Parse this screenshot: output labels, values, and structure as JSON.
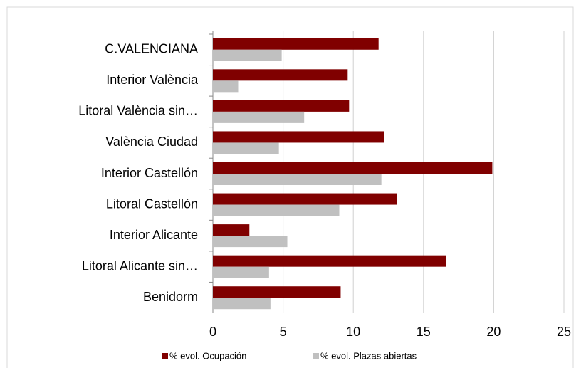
{
  "chart_data": {
    "type": "hbar",
    "categories": [
      "C.VALENCIANA",
      "Interior València",
      "Litoral València sin…",
      "València Ciudad",
      "Interior Castellón",
      "Litoral Castellón",
      "Interior Alicante",
      "Litoral Alicante sin…",
      "Benidorm"
    ],
    "series": [
      {
        "name": "% evol. Ocupación",
        "color": "#800000",
        "values": [
          11.8,
          9.6,
          9.7,
          12.2,
          19.9,
          13.1,
          2.6,
          16.6,
          9.1
        ]
      },
      {
        "name": "% evol. Plazas abiertas",
        "color": "#c0c0c0",
        "values": [
          4.9,
          1.8,
          6.5,
          4.7,
          12.0,
          9.0,
          5.3,
          4.0,
          4.1
        ]
      }
    ],
    "xlim": [
      0,
      25
    ],
    "xticks": [
      0,
      5,
      10,
      15,
      20,
      25
    ],
    "grid": true,
    "legend": "bottom"
  }
}
